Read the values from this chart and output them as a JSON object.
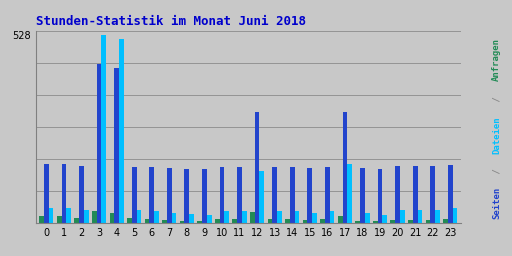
{
  "title": "Stunden-Statistik im Monat Juni 2018",
  "ylabel_right_seiten": "Seiten",
  "ylabel_right_dateien": "Dateien",
  "ylabel_right_anfragen": "Anfragen",
  "ylabel_right_sep": " / ",
  "hours": [
    0,
    1,
    2,
    3,
    4,
    5,
    6,
    7,
    8,
    9,
    10,
    11,
    12,
    13,
    14,
    15,
    16,
    17,
    18,
    19,
    20,
    21,
    22,
    23
  ],
  "seiten": [
    165,
    165,
    160,
    445,
    435,
    158,
    158,
    155,
    152,
    150,
    158,
    158,
    310,
    158,
    158,
    155,
    158,
    310,
    155,
    150,
    160,
    160,
    160,
    163
  ],
  "dateien": [
    40,
    40,
    35,
    528,
    518,
    35,
    32,
    28,
    25,
    22,
    32,
    32,
    145,
    32,
    32,
    28,
    32,
    165,
    28,
    22,
    35,
    35,
    35,
    40
  ],
  "anfragen": [
    18,
    18,
    12,
    32,
    28,
    12,
    10,
    8,
    6,
    5,
    10,
    10,
    30,
    10,
    10,
    8,
    10,
    18,
    6,
    5,
    8,
    8,
    8,
    10
  ],
  "color_seiten": "#2244CC",
  "color_dateien": "#00BFFF",
  "color_anfragen": "#228B56",
  "ylim_max": 540,
  "ytick_val": 528,
  "background_color": "#C8C8C8",
  "title_color": "#0000CC",
  "right_label_color_seiten": "#2244CC",
  "right_label_color_dateien": "#00BFFF",
  "right_label_color_anfragen": "#228B56",
  "bar_width": 0.27,
  "figsize": [
    5.12,
    2.56
  ],
  "dpi": 100
}
